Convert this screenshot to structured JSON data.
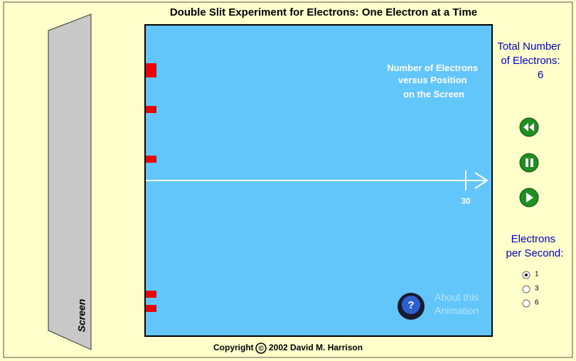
{
  "title": "Double Slit Experiment for Electrons: One Electron at a Time",
  "screen_label": "Screen",
  "histogram": {
    "label": [
      "Number of Electrons",
      "versus Position",
      "on the Screen"
    ],
    "xlim": [
      0,
      30
    ],
    "xticks": [
      30
    ],
    "color": "#ee0000",
    "counts": [
      0,
      0,
      0,
      0,
      0,
      1,
      1,
      0,
      0,
      0,
      0,
      1,
      0,
      0,
      0,
      0,
      0,
      0,
      1,
      0,
      0,
      0,
      0,
      0,
      0,
      0,
      0,
      0,
      0,
      0,
      0,
      0,
      0,
      0,
      0,
      0,
      0,
      1,
      0,
      1,
      0,
      0,
      0
    ]
  },
  "counter": {
    "label": [
      "Total Number",
      "of Electrons:"
    ],
    "value": 6
  },
  "rate": {
    "label": [
      "Electrons",
      "per Second:"
    ],
    "options": [
      1,
      3,
      6
    ],
    "selected": 0
  },
  "about": [
    "About this",
    "Animation"
  ],
  "copyright": {
    "prefix": "Copyright",
    "symbol": "©",
    "text": "2002 David M. Harrison"
  }
}
